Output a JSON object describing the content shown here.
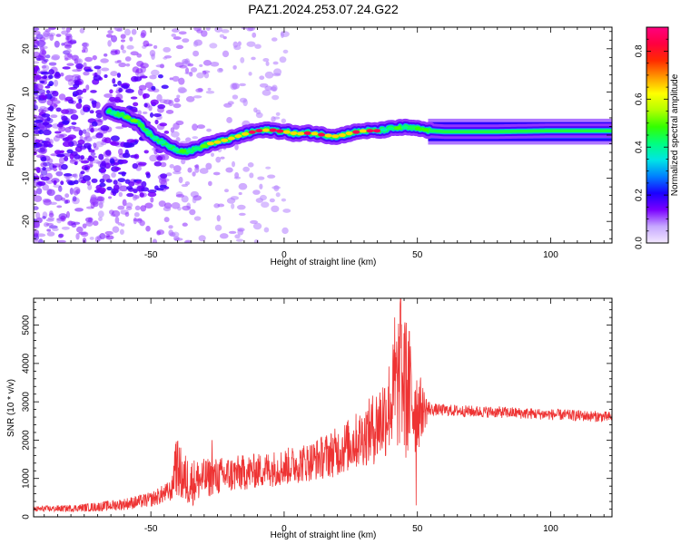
{
  "title": "PAZ1.2024.253.07.24.G22",
  "chart_data": [
    {
      "type": "heatmap",
      "xlabel": "Height of straight line (km)",
      "ylabel": "Frequency (Hz)",
      "xlim": [
        -94,
        123
      ],
      "ylim": [
        -25,
        25
      ],
      "xticks": [
        -50,
        0,
        50,
        100
      ],
      "yticks": [
        -20,
        -10,
        0,
        10,
        20
      ],
      "colorbar": {
        "label": "Normalized spectral amplitude",
        "range": [
          0,
          0.9
        ],
        "ticks": [
          0.0,
          0.2,
          0.4,
          0.6,
          0.8
        ],
        "colors": [
          "#f3e8ff",
          "#c6a8ff",
          "#7a00ff",
          "#1a00ff",
          "#007fff",
          "#00e5e5",
          "#00ff7f",
          "#33ff00",
          "#b3ff00",
          "#ffff00",
          "#ff9900",
          "#ff2a00",
          "#ff0040",
          "#ff0080"
        ]
      },
      "ridge_frequency_trace": {
        "x": [
          -66,
          -60,
          -55,
          -50,
          -45,
          -40,
          -36,
          -32,
          -28,
          -24,
          -20,
          -15,
          -10,
          -5,
          0,
          5,
          10,
          15,
          20,
          25,
          30,
          35,
          40,
          45,
          50,
          55,
          60,
          70,
          80,
          90,
          100,
          110,
          123
        ],
        "y": [
          5.5,
          4.5,
          3,
          0,
          -2,
          -3.5,
          -3.8,
          -3,
          -2,
          -1.5,
          -0.8,
          0.2,
          1,
          1.2,
          0.8,
          0.3,
          0.5,
          0,
          -0.3,
          0.5,
          1,
          1,
          1.5,
          1.8,
          1.5,
          1,
          0.8,
          0.8,
          0.8,
          0.9,
          1,
          1,
          1
        ]
      }
    },
    {
      "type": "line",
      "xlabel": "Height of straight line (km)",
      "ylabel": "SNR (10 * v/v)",
      "xlim": [
        -94,
        123
      ],
      "ylim": [
        0,
        5700
      ],
      "xticks": [
        -50,
        0,
        50,
        100
      ],
      "yticks": [
        0,
        1000,
        2000,
        3000,
        4000,
        5000
      ],
      "color": "#ee3333",
      "envelope": {
        "x": [
          -94,
          -80,
          -70,
          -60,
          -50,
          -45,
          -42,
          -41,
          -38,
          -35,
          -30,
          -25,
          -20,
          -10,
          0,
          10,
          20,
          25,
          30,
          35,
          38,
          40,
          42,
          43,
          44,
          45,
          47,
          50,
          55,
          60,
          70,
          80,
          90,
          100,
          110,
          123
        ],
        "y": [
          200,
          220,
          260,
          330,
          450,
          600,
          700,
          1400,
          1000,
          900,
          1000,
          1050,
          1100,
          1200,
          1300,
          1450,
          1700,
          1900,
          2100,
          2400,
          2700,
          3000,
          3300,
          3600,
          3800,
          3400,
          3200,
          2800,
          2800,
          2780,
          2750,
          2730,
          2700,
          2670,
          2640,
          2600
        ]
      },
      "spread": {
        "x": [
          -94,
          -80,
          -60,
          -50,
          -42,
          -41,
          -30,
          -10,
          10,
          30,
          40,
          44,
          48,
          52,
          55,
          123
        ],
        "y": [
          60,
          70,
          120,
          150,
          220,
          600,
          400,
          350,
          400,
          600,
          1000,
          1600,
          1300,
          500,
          120,
          110
        ]
      },
      "peaks": [
        {
          "x": 43.8,
          "y": 5700
        },
        {
          "x": 45.4,
          "y": 4800
        },
        {
          "x": 41.5,
          "y": 5200
        },
        {
          "x": -40.7,
          "y": 1900
        },
        {
          "x": -27,
          "y": 2000
        },
        {
          "x": 49.5,
          "y": 300
        }
      ]
    }
  ]
}
